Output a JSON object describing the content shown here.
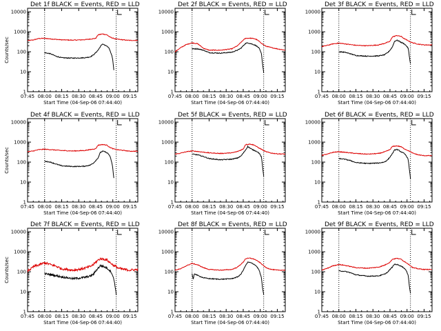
{
  "figure": {
    "background": "#ffffff",
    "axis_color": "#000000"
  },
  "chart_data": {
    "type": "line",
    "layout": "3x3 grid",
    "x_tick_labels": [
      "07:45",
      "08:00",
      "08:15",
      "08:30",
      "08:45",
      "09:00",
      "09:15"
    ],
    "x_ticks_minutes": [
      0,
      15,
      30,
      45,
      60,
      75,
      90
    ],
    "x_range_minutes": [
      0,
      97
    ],
    "xlabel": "Start Time (04-Sep-06 07:44:40)",
    "ylabel": "Counts/sec",
    "y_scale": "log",
    "ylim": [
      1,
      15000
    ],
    "y_tick_labels": [
      "1",
      "10",
      "100",
      "1000",
      "10000"
    ],
    "y_ticks": [
      1,
      10,
      100,
      1000,
      10000
    ],
    "vertical_markers_minutes": [
      15,
      78
    ],
    "series_colors": {
      "Events": "#000000",
      "LLD": "#dd0000"
    },
    "panels": [
      {
        "title": "Det 1f BLACK = Events, RED = LLD",
        "red": {
          "x": [
            0,
            5,
            10,
            15,
            20,
            30,
            40,
            50,
            55,
            60,
            62,
            66,
            70,
            72,
            75,
            78,
            80,
            85,
            90,
            97
          ],
          "y": [
            360,
            390,
            460,
            470,
            440,
            395,
            380,
            400,
            430,
            470,
            700,
            780,
            700,
            560,
            480,
            430,
            420,
            390,
            370,
            370
          ]
        },
        "black": {
          "x": [
            15,
            20,
            25,
            30,
            40,
            50,
            55,
            58,
            60,
            62,
            64,
            66,
            68,
            70,
            71,
            72,
            73,
            74,
            75,
            75.5,
            76
          ],
          "y": [
            90,
            80,
            60,
            50,
            48,
            50,
            55,
            70,
            90,
            120,
            180,
            250,
            210,
            190,
            160,
            140,
            95,
            70,
            40,
            20,
            11
          ]
        }
      },
      {
        "title": "Det 2f BLACK = Events, RED = LLD",
        "red": {
          "x": [
            0,
            5,
            10,
            15,
            20,
            25,
            30,
            40,
            50,
            55,
            60,
            62,
            66,
            70,
            72,
            75,
            78,
            80,
            85,
            90,
            97
          ],
          "y": [
            100,
            160,
            230,
            280,
            250,
            150,
            120,
            120,
            140,
            200,
            380,
            470,
            480,
            450,
            400,
            300,
            220,
            190,
            160,
            140,
            120
          ]
        },
        "black": {
          "x": [
            15,
            20,
            25,
            30,
            40,
            50,
            55,
            58,
            60,
            62,
            64,
            66,
            68,
            70,
            72,
            74,
            76,
            77,
            78
          ],
          "y": [
            140,
            140,
            120,
            90,
            85,
            95,
            120,
            150,
            200,
            260,
            280,
            260,
            240,
            220,
            190,
            150,
            80,
            25,
            9
          ]
        }
      },
      {
        "title": "Det 3f BLACK = Events, RED = LLD",
        "red": {
          "x": [
            0,
            5,
            10,
            15,
            20,
            30,
            40,
            50,
            55,
            60,
            62,
            66,
            70,
            72,
            75,
            78,
            80,
            85,
            90,
            97
          ],
          "y": [
            180,
            210,
            250,
            270,
            250,
            210,
            200,
            220,
            260,
            330,
            550,
            650,
            580,
            470,
            380,
            310,
            280,
            240,
            220,
            220
          ]
        },
        "black": {
          "x": [
            15,
            20,
            25,
            30,
            40,
            50,
            55,
            58,
            60,
            62,
            64,
            66,
            68,
            70,
            72,
            74,
            76,
            77,
            78
          ],
          "y": [
            100,
            95,
            80,
            65,
            60,
            62,
            70,
            90,
            120,
            170,
            330,
            380,
            340,
            290,
            260,
            210,
            150,
            60,
            25
          ]
        }
      },
      {
        "title": "Det 4f BLACK = Events, RED = LLD",
        "red": {
          "x": [
            0,
            5,
            10,
            15,
            20,
            30,
            40,
            50,
            55,
            60,
            62,
            66,
            70,
            72,
            75,
            78,
            80,
            85,
            90,
            97
          ],
          "y": [
            330,
            360,
            420,
            440,
            420,
            380,
            360,
            380,
            420,
            470,
            700,
            760,
            700,
            560,
            470,
            420,
            410,
            380,
            350,
            350
          ]
        },
        "black": {
          "x": [
            15,
            20,
            25,
            30,
            40,
            50,
            55,
            58,
            60,
            62,
            64,
            66,
            68,
            70,
            71,
            72,
            73,
            74,
            75,
            75.5,
            76
          ],
          "y": [
            110,
            100,
            80,
            65,
            60,
            62,
            70,
            90,
            120,
            160,
            300,
            350,
            330,
            290,
            260,
            220,
            160,
            100,
            50,
            25,
            14
          ]
        }
      },
      {
        "title": "Det 5f BLACK = Events, RED = LLD",
        "red": {
          "x": [
            0,
            5,
            10,
            15,
            20,
            30,
            40,
            50,
            55,
            60,
            62,
            66,
            70,
            72,
            75,
            78,
            80,
            85,
            90,
            97
          ],
          "y": [
            250,
            280,
            330,
            360,
            340,
            290,
            270,
            290,
            340,
            450,
            750,
            800,
            700,
            580,
            470,
            380,
            330,
            280,
            260,
            250
          ]
        },
        "black": {
          "x": [
            15,
            20,
            25,
            30,
            40,
            50,
            55,
            58,
            60,
            62,
            64,
            66,
            68,
            70,
            72,
            74,
            76,
            77,
            78
          ],
          "y": [
            250,
            230,
            190,
            150,
            130,
            140,
            160,
            200,
            280,
            400,
            600,
            500,
            420,
            380,
            340,
            280,
            180,
            60,
            20
          ]
        }
      },
      {
        "title": "Det 6f BLACK = Events, RED = LLD",
        "red": {
          "x": [
            0,
            5,
            10,
            15,
            20,
            30,
            40,
            50,
            55,
            60,
            62,
            66,
            70,
            72,
            75,
            78,
            80,
            85,
            90,
            97
          ],
          "y": [
            220,
            250,
            310,
            330,
            310,
            270,
            250,
            270,
            320,
            420,
            600,
            650,
            580,
            480,
            400,
            330,
            280,
            230,
            210,
            210
          ]
        },
        "black": {
          "x": [
            15,
            20,
            25,
            30,
            40,
            50,
            55,
            58,
            60,
            62,
            64,
            66,
            68,
            70,
            72,
            74,
            76,
            77,
            78
          ],
          "y": [
            150,
            140,
            120,
            95,
            85,
            90,
            100,
            130,
            180,
            260,
            400,
            430,
            380,
            320,
            280,
            220,
            140,
            45,
            15
          ]
        }
      },
      {
        "title": "Det 7f BLACK = Events, RED = LLD",
        "red": {
          "x": [
            0,
            3,
            6,
            9,
            12,
            15,
            18,
            21,
            24,
            27,
            30,
            35,
            40,
            45,
            50,
            55,
            58,
            60,
            62,
            64,
            66,
            68,
            70,
            72,
            74,
            76,
            78,
            80,
            85,
            90,
            97
          ],
          "y": [
            110,
            140,
            190,
            210,
            240,
            280,
            250,
            220,
            200,
            170,
            140,
            130,
            120,
            130,
            150,
            180,
            230,
            300,
            380,
            450,
            430,
            420,
            380,
            300,
            250,
            200,
            180,
            150,
            130,
            120,
            130
          ]
        },
        "black": {
          "x": [
            15,
            18,
            21,
            24,
            27,
            30,
            35,
            40,
            45,
            50,
            55,
            58,
            60,
            62,
            64,
            66,
            68,
            70,
            72,
            74,
            76,
            77,
            78
          ],
          "y": [
            80,
            75,
            70,
            65,
            60,
            55,
            50,
            45,
            48,
            52,
            60,
            75,
            110,
            150,
            200,
            190,
            170,
            150,
            120,
            90,
            40,
            20,
            7
          ]
        }
      },
      {
        "title": "Det 8f BLACK = Events, RED = LLD",
        "red": {
          "x": [
            0,
            5,
            10,
            15,
            20,
            25,
            30,
            40,
            50,
            55,
            60,
            62,
            66,
            70,
            72,
            75,
            78,
            80,
            85,
            90,
            97
          ],
          "y": [
            120,
            140,
            200,
            260,
            220,
            160,
            130,
            120,
            130,
            170,
            300,
            450,
            480,
            420,
            360,
            280,
            200,
            160,
            130,
            120,
            120
          ]
        },
        "black": {
          "x": [
            15,
            16,
            17,
            18,
            20,
            25,
            30,
            40,
            50,
            55,
            58,
            60,
            62,
            64,
            66,
            68,
            70,
            72,
            74,
            76,
            77,
            78
          ],
          "y": [
            80,
            40,
            80,
            75,
            65,
            50,
            45,
            42,
            45,
            55,
            75,
            120,
            200,
            300,
            290,
            260,
            230,
            180,
            120,
            50,
            15,
            7
          ]
        }
      },
      {
        "title": "Det 9f BLACK = Events, RED = LLD",
        "red": {
          "x": [
            0,
            5,
            10,
            15,
            20,
            30,
            40,
            50,
            55,
            60,
            62,
            66,
            70,
            72,
            75,
            78,
            80,
            85,
            90,
            97
          ],
          "y": [
            120,
            150,
            200,
            230,
            210,
            160,
            150,
            170,
            210,
            300,
            420,
            470,
            420,
            340,
            270,
            200,
            160,
            140,
            130,
            130
          ]
        },
        "black": {
          "x": [
            15,
            20,
            25,
            30,
            40,
            50,
            55,
            58,
            60,
            62,
            64,
            66,
            68,
            70,
            72,
            74,
            76,
            77,
            78
          ],
          "y": [
            110,
            105,
            90,
            70,
            60,
            62,
            75,
            95,
            130,
            170,
            240,
            230,
            210,
            190,
            160,
            120,
            70,
            20,
            8
          ]
        }
      }
    ]
  }
}
